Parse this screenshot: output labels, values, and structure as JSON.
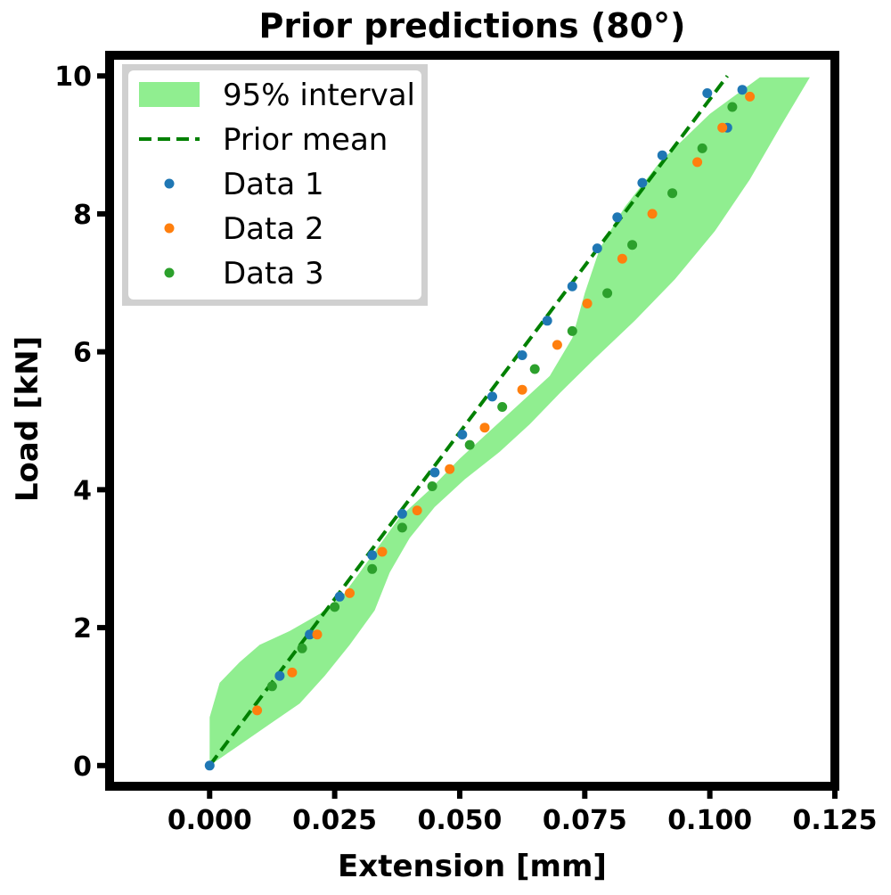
{
  "chart_data": {
    "type": "scatter",
    "title": "Prior predictions (80°)",
    "xlabel": "Extension [mm]",
    "ylabel": "Load [kN]",
    "xlim": [
      -0.02,
      0.125
    ],
    "ylim": [
      -0.3,
      10.3
    ],
    "xticks": [
      0.0,
      0.025,
      0.05,
      0.075,
      0.1,
      0.125
    ],
    "xtick_labels": [
      "0.000",
      "0.025",
      "0.050",
      "0.075",
      "0.100",
      "0.125"
    ],
    "yticks": [
      0,
      2,
      4,
      6,
      8,
      10
    ],
    "ytick_labels": [
      "0",
      "2",
      "4",
      "6",
      "8",
      "10"
    ],
    "grid": false,
    "legend_position": "top-left",
    "colors": {
      "interval": "#90ee90",
      "prior_mean": "#008000",
      "data1": "#1f77b4",
      "data2": "#ff7f0e",
      "data3": "#2ca02c",
      "frame": "#000000"
    },
    "interval": {
      "name": "95% interval",
      "upper": [
        [
          0.0,
          0.0
        ],
        [
          0.0,
          0.7
        ],
        [
          0.002,
          1.2
        ],
        [
          0.006,
          1.5
        ],
        [
          0.01,
          1.75
        ],
        [
          0.016,
          1.95
        ],
        [
          0.022,
          2.2
        ],
        [
          0.027,
          2.5
        ],
        [
          0.03,
          2.8
        ],
        [
          0.034,
          3.2
        ],
        [
          0.038,
          3.6
        ],
        [
          0.044,
          4.0
        ],
        [
          0.05,
          4.45
        ],
        [
          0.056,
          4.85
        ],
        [
          0.062,
          5.25
        ],
        [
          0.068,
          5.65
        ],
        [
          0.0725,
          6.2
        ],
        [
          0.075,
          6.85
        ],
        [
          0.078,
          7.5
        ],
        [
          0.083,
          8.1
        ],
        [
          0.09,
          8.75
        ],
        [
          0.1,
          9.45
        ],
        [
          0.11,
          9.98
        ],
        [
          0.12,
          9.98
        ]
      ],
      "lower": [
        [
          0.0,
          0.0
        ],
        [
          0.006,
          0.3
        ],
        [
          0.012,
          0.6
        ],
        [
          0.018,
          0.9
        ],
        [
          0.023,
          1.3
        ],
        [
          0.028,
          1.75
        ],
        [
          0.033,
          2.25
        ],
        [
          0.036,
          2.8
        ],
        [
          0.04,
          3.3
        ],
        [
          0.045,
          3.75
        ],
        [
          0.051,
          4.15
        ],
        [
          0.058,
          4.55
        ],
        [
          0.064,
          4.95
        ],
        [
          0.07,
          5.4
        ],
        [
          0.077,
          5.9
        ],
        [
          0.085,
          6.45
        ],
        [
          0.093,
          7.05
        ],
        [
          0.101,
          7.75
        ],
        [
          0.108,
          8.5
        ],
        [
          0.114,
          9.25
        ],
        [
          0.12,
          9.98
        ]
      ]
    },
    "prior_mean": {
      "name": "Prior mean",
      "points": [
        [
          0.0,
          0.0
        ],
        [
          0.1035,
          10.0
        ]
      ]
    },
    "series": [
      {
        "name": "Data 1",
        "points": [
          [
            0.0,
            0.0
          ],
          [
            0.014,
            1.3
          ],
          [
            0.02,
            1.9
          ],
          [
            0.026,
            2.45
          ],
          [
            0.0325,
            3.05
          ],
          [
            0.0385,
            3.65
          ],
          [
            0.045,
            4.25
          ],
          [
            0.0505,
            4.8
          ],
          [
            0.0565,
            5.35
          ],
          [
            0.0625,
            5.95
          ],
          [
            0.0675,
            6.45
          ],
          [
            0.0725,
            6.95
          ],
          [
            0.0775,
            7.5
          ],
          [
            0.0815,
            7.95
          ],
          [
            0.0865,
            8.45
          ],
          [
            0.0905,
            8.85
          ],
          [
            0.0995,
            9.75
          ],
          [
            0.1065,
            9.8
          ],
          [
            0.1035,
            9.25
          ]
        ]
      },
      {
        "name": "Data 2",
        "points": [
          [
            0.0095,
            0.8
          ],
          [
            0.0165,
            1.35
          ],
          [
            0.0215,
            1.9
          ],
          [
            0.028,
            2.5
          ],
          [
            0.0345,
            3.1
          ],
          [
            0.0415,
            3.7
          ],
          [
            0.048,
            4.3
          ],
          [
            0.055,
            4.9
          ],
          [
            0.0625,
            5.45
          ],
          [
            0.0695,
            6.1
          ],
          [
            0.0755,
            6.7
          ],
          [
            0.0825,
            7.35
          ],
          [
            0.0885,
            8.0
          ],
          [
            0.0975,
            8.75
          ],
          [
            0.1025,
            9.25
          ],
          [
            0.108,
            9.7
          ]
        ]
      },
      {
        "name": "Data 3",
        "points": [
          [
            0.0125,
            1.15
          ],
          [
            0.0185,
            1.7
          ],
          [
            0.025,
            2.3
          ],
          [
            0.0325,
            2.85
          ],
          [
            0.0385,
            3.45
          ],
          [
            0.0445,
            4.05
          ],
          [
            0.052,
            4.65
          ],
          [
            0.0585,
            5.2
          ],
          [
            0.065,
            5.75
          ],
          [
            0.0725,
            6.3
          ],
          [
            0.0795,
            6.85
          ],
          [
            0.0845,
            7.55
          ],
          [
            0.0925,
            8.3
          ],
          [
            0.0985,
            8.95
          ],
          [
            0.1045,
            9.55
          ]
        ]
      }
    ]
  }
}
